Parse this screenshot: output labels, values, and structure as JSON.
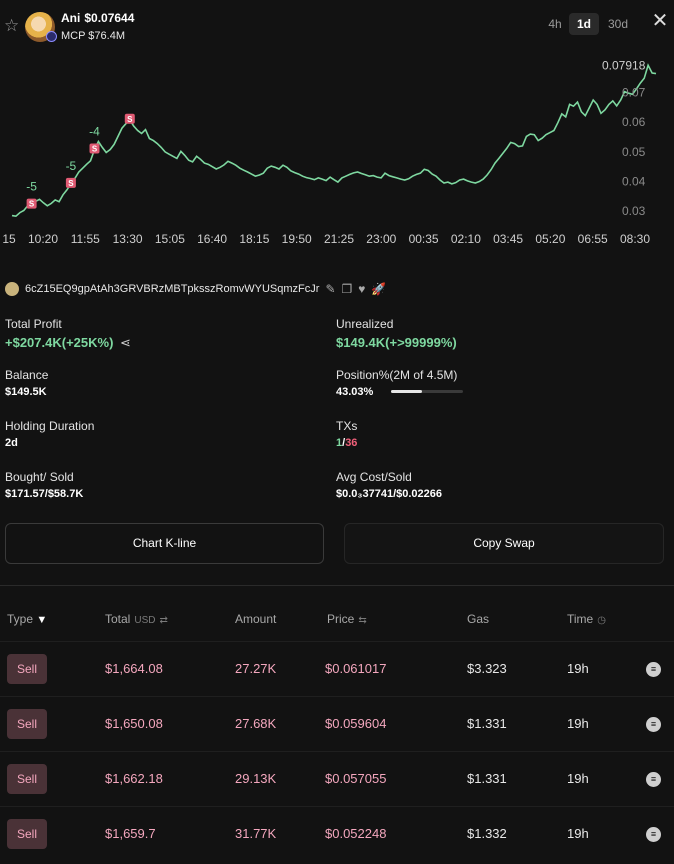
{
  "header": {
    "token_name": "Ani",
    "price": "$0.07644",
    "mcp": "MCP $76.4M",
    "timeframes": [
      {
        "label": "4h",
        "active": false
      },
      {
        "label": "1d",
        "active": true
      },
      {
        "label": "30d",
        "active": false
      }
    ]
  },
  "chart_data": {
    "type": "line",
    "line_color": "#7ed8a0",
    "x_ticks": [
      "15",
      "10:20",
      "11:55",
      "13:30",
      "15:05",
      "16:40",
      "18:15",
      "19:50",
      "21:25",
      "23:00",
      "00:35",
      "02:10",
      "03:45",
      "05:20",
      "06:55",
      "08:30"
    ],
    "y_ticks": [
      "0.07918",
      "0.07",
      "0.06",
      "0.05",
      "0.04",
      "0.03"
    ],
    "ylim": [
      0.026,
      0.082
    ],
    "current_price_label": "0.07918",
    "series": [
      {
        "values": [
          0.0285,
          0.0283,
          0.0295,
          0.0302,
          0.0318,
          0.0322,
          0.0333,
          0.034,
          0.0328,
          0.0318,
          0.0326,
          0.0338,
          0.0332,
          0.0355,
          0.0372,
          0.0392,
          0.041,
          0.0432,
          0.0445,
          0.0458,
          0.047,
          0.0508,
          0.0535,
          0.0515,
          0.0498,
          0.0508,
          0.0525,
          0.0552,
          0.058,
          0.0595,
          0.0608,
          0.0587,
          0.0572,
          0.0562,
          0.0575,
          0.0545,
          0.0538,
          0.0528,
          0.0515,
          0.05,
          0.0492,
          0.0485,
          0.0478,
          0.0502,
          0.0488,
          0.0472,
          0.0466,
          0.0485,
          0.0475,
          0.0462,
          0.0458,
          0.045,
          0.0442,
          0.0448,
          0.0456,
          0.0468,
          0.0462,
          0.0455,
          0.0445,
          0.0438,
          0.0432,
          0.0425,
          0.0418,
          0.0422,
          0.0428,
          0.0445,
          0.0452,
          0.0448,
          0.0442,
          0.0455,
          0.0448,
          0.0436,
          0.043,
          0.0425,
          0.0418,
          0.0413,
          0.041,
          0.0406,
          0.0412,
          0.0408,
          0.0403,
          0.0415,
          0.0406,
          0.0398,
          0.0412,
          0.0418,
          0.0424,
          0.0429,
          0.0432,
          0.0427,
          0.0423,
          0.0418,
          0.042,
          0.0415,
          0.0412,
          0.0428,
          0.042,
          0.0416,
          0.0412,
          0.0408,
          0.0405,
          0.0409,
          0.0418,
          0.0424,
          0.0428,
          0.0441,
          0.0437,
          0.0425,
          0.0418,
          0.0405,
          0.0395,
          0.0398,
          0.0392,
          0.0396,
          0.0405,
          0.0408,
          0.0402,
          0.0398,
          0.0395,
          0.04,
          0.0408,
          0.0422,
          0.044,
          0.0462,
          0.0478,
          0.0495,
          0.0512,
          0.0532,
          0.0528,
          0.0518,
          0.052,
          0.0552,
          0.056,
          0.0558,
          0.0538,
          0.0546,
          0.0558,
          0.0565,
          0.0572,
          0.0598,
          0.0628,
          0.0618,
          0.066,
          0.0654,
          0.0668,
          0.0635,
          0.0622,
          0.0648,
          0.0675,
          0.066,
          0.063,
          0.0642,
          0.066,
          0.0672,
          0.0655,
          0.0675,
          0.0703,
          0.0698,
          0.0694,
          0.0712,
          0.0732,
          0.0748,
          0.0792,
          0.0766,
          0.0764
        ]
      }
    ],
    "sell_markers": [
      {
        "index": 5,
        "label": "-5"
      },
      {
        "index": 15,
        "label": "-5"
      },
      {
        "index": 21,
        "label": "-4"
      },
      {
        "index": 30,
        "label": ""
      }
    ],
    "grid": false
  },
  "wallet": {
    "address": "6cZ15EQ9gpAtAh3GRVBRzMBTpksszRomvWYUSqmzFcJr"
  },
  "stats": {
    "total_profit_label": "Total Profit",
    "total_profit_value": "+$207.4K(+25K%)",
    "unrealized_label": "Unrealized",
    "unrealized_value": "$149.4K(+>99999%)",
    "balance_label": "Balance",
    "balance_value": "$149.5K",
    "position_label": "Position%(2M of 4.5M)",
    "position_value": "43.03%",
    "position_fraction": 0.4303,
    "holding_label": "Holding Duration",
    "holding_value": "2d",
    "txs_label": "TXs",
    "txs_buys": "1",
    "txs_sep": "/",
    "txs_sells": "36",
    "bought_sold_label": "Bought/ Sold",
    "bought_sold_value": "$171.57/$58.7K",
    "avg_cost_label": "Avg Cost/Sold",
    "avg_cost_value": "$0.0₃37741/$0.02266"
  },
  "buttons": {
    "chart_kline": "Chart K-line",
    "copy_swap": "Copy Swap"
  },
  "table": {
    "headers": {
      "type": "Type",
      "total": "Total",
      "total_unit": "USD",
      "amount": "Amount",
      "price": "Price",
      "gas": "Gas",
      "time": "Time"
    },
    "rows": [
      {
        "type": "Sell",
        "total": "$1,664.08",
        "amount": "27.27K",
        "price": "$0.061017",
        "gas": "$3.323",
        "time": "19h"
      },
      {
        "type": "Sell",
        "total": "$1,650.08",
        "amount": "27.68K",
        "price": "$0.059604",
        "gas": "$1.331",
        "time": "19h"
      },
      {
        "type": "Sell",
        "total": "$1,662.18",
        "amount": "29.13K",
        "price": "$0.057055",
        "gas": "$1.331",
        "time": "19h"
      },
      {
        "type": "Sell",
        "total": "$1,659.7",
        "amount": "31.77K",
        "price": "$0.052248",
        "gas": "$1.332",
        "time": "19h"
      }
    ]
  }
}
